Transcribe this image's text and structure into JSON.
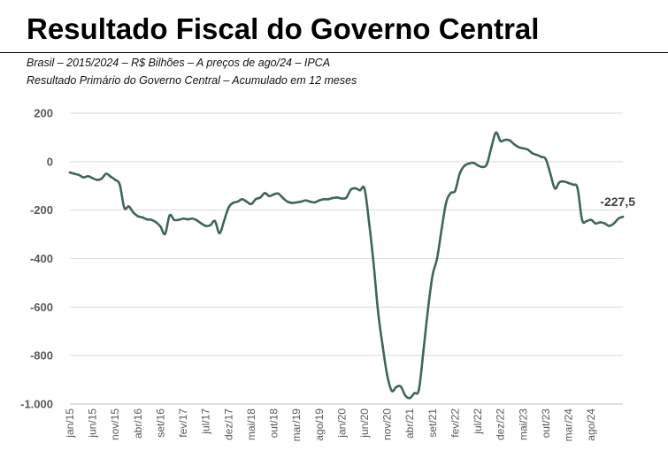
{
  "header": {
    "title": "Resultado Fiscal do Governo Central",
    "subtitle1": "Brasil – 2015/2024 – R$ Bilhões – A preços de ago/24 – IPCA",
    "subtitle2": "Resultado Primário do Governo Central – Acumulado em 12 meses"
  },
  "colors": {
    "line": "#3f6659",
    "grid": "#d9d9d9",
    "axis": "#bfbfbf"
  },
  "chart_data": {
    "type": "line",
    "title": "Resultado Fiscal do Governo Central",
    "xlabel": "",
    "ylabel": "R$ Bilhões",
    "ylim": [
      -1000,
      200
    ],
    "yticks": [
      200,
      0,
      -200,
      -400,
      -600,
      -800,
      -1000
    ],
    "ytick_labels": [
      "200",
      "0",
      "-200",
      "-400",
      "-600",
      "-800",
      "-1.000"
    ],
    "xtick_labels": [
      "jan/15",
      "jun/15",
      "nov/15",
      "abr/16",
      "set/16",
      "fev/17",
      "jul/17",
      "dez/17",
      "mai/18",
      "out/18",
      "mar/19",
      "ago/19",
      "jan/20",
      "jun/20",
      "nov/20",
      "abr/21",
      "set/21",
      "fev/22",
      "jul/22",
      "dez/22",
      "mai/23",
      "out/23",
      "mar/24",
      "ago/24"
    ],
    "grid": true,
    "series": [
      {
        "name": "Resultado Primário do Governo Central – Acumulado em 12 meses",
        "start": "jan/15",
        "end": "ago/24",
        "values": [
          -45,
          -50,
          -55,
          -65,
          -60,
          -68,
          -75,
          -70,
          -50,
          -62,
          -75,
          -95,
          -190,
          -185,
          -210,
          -225,
          -230,
          -238,
          -240,
          -250,
          -268,
          -298,
          -222,
          -240,
          -240,
          -235,
          -238,
          -235,
          -242,
          -255,
          -265,
          -262,
          -245,
          -295,
          -245,
          -190,
          -170,
          -165,
          -155,
          -165,
          -175,
          -155,
          -148,
          -130,
          -142,
          -135,
          -132,
          -150,
          -165,
          -170,
          -168,
          -165,
          -160,
          -165,
          -168,
          -160,
          -155,
          -155,
          -150,
          -148,
          -152,
          -148,
          -115,
          -110,
          -118,
          -112,
          -250,
          -420,
          -620,
          -760,
          -880,
          -945,
          -930,
          -928,
          -965,
          -975,
          -955,
          -940,
          -780,
          -610,
          -470,
          -400,
          -280,
          -170,
          -130,
          -120,
          -50,
          -18,
          -8,
          -5,
          -15,
          -22,
          -10,
          60,
          120,
          85,
          90,
          88,
          72,
          60,
          55,
          50,
          35,
          28,
          20,
          10,
          -50,
          -110,
          -85,
          -82,
          -88,
          -95,
          -110,
          -240,
          -245,
          -240,
          -255,
          -250,
          -255,
          -265,
          -255,
          -235,
          -227.5
        ],
        "last_label": "-227,5"
      }
    ]
  }
}
